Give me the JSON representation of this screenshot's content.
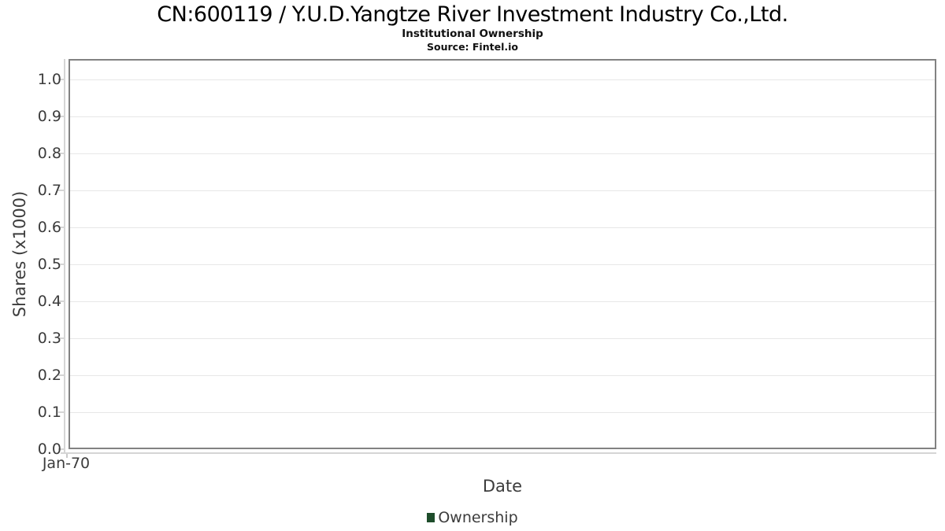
{
  "header": {
    "title": "CN:600119 / Y.U.D.Yangtze River Investment Industry Co.,Ltd.",
    "subtitle": "Institutional Ownership",
    "source": "Source: Fintel.io"
  },
  "chart_data": {
    "type": "line",
    "title": "CN:600119 / Y.U.D.Yangtze River Investment Industry Co.,Ltd.",
    "subtitle": "Institutional Ownership",
    "source": "Source: Fintel.io",
    "xlabel": "Date",
    "ylabel": "Shares (x1000)",
    "x_tick_labels": [
      "Jan-70"
    ],
    "y_ticks": [
      {
        "label": "0.0",
        "value": 0.0
      },
      {
        "label": "0.1",
        "value": 0.1
      },
      {
        "label": "0.2",
        "value": 0.2
      },
      {
        "label": "0.3",
        "value": 0.3
      },
      {
        "label": "0.4",
        "value": 0.4
      },
      {
        "label": "0.5",
        "value": 0.5
      },
      {
        "label": "0.6",
        "value": 0.6
      },
      {
        "label": "0.7",
        "value": 0.7
      },
      {
        "label": "0.8",
        "value": 0.8
      },
      {
        "label": "0.9",
        "value": 0.9
      },
      {
        "label": "1.0",
        "value": 1.0
      }
    ],
    "ylim": [
      0,
      1.055
    ],
    "grid": "horizontal",
    "legend_position": "bottom",
    "series": [
      {
        "name": "Ownership",
        "color": "#1e4d2b",
        "x": [],
        "values": []
      }
    ]
  },
  "legend": {
    "items": [
      {
        "label": "Ownership",
        "color": "#1e4d2b"
      }
    ]
  },
  "colors": {
    "background": "#ffffff",
    "plot_border": "#828282",
    "gridline": "#e7e7e7",
    "axis_line": "#d5d5d5",
    "tick": "#c9c9c9",
    "axis_text": "#3c3c3c",
    "title_text": "#000000",
    "series_ownership": "#1e4d2b"
  }
}
